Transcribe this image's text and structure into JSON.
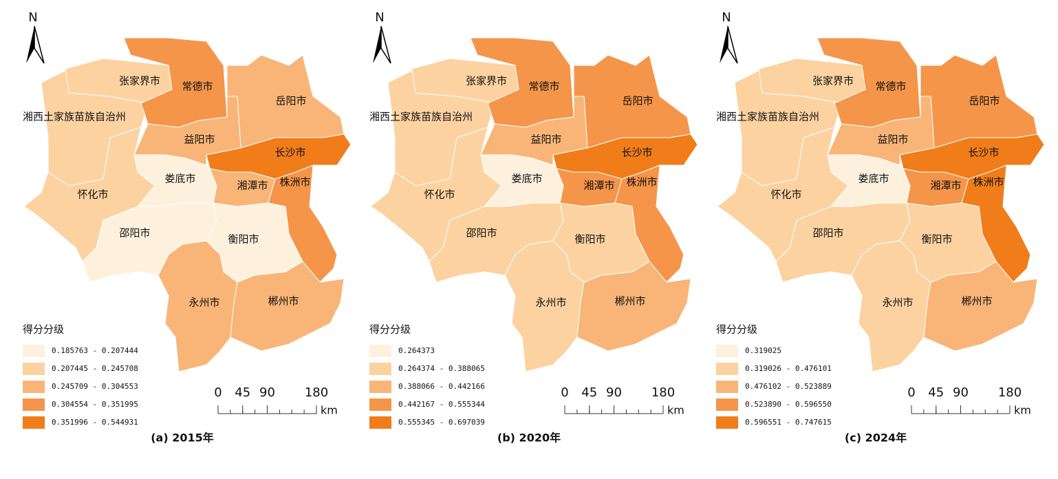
{
  "panels": [
    {
      "north": "N",
      "caption": "(a)  2015年",
      "legend": {
        "title": "得分分级",
        "items": [
          {
            "label": "0.185763 - 0.207444",
            "color": "#fdf1dd"
          },
          {
            "label": "0.207445 - 0.245708",
            "color": "#fcd2a0"
          },
          {
            "label": "0.245709 - 0.304553",
            "color": "#f9b577"
          },
          {
            "label": "0.304554 - 0.351995",
            "color": "#f5954a"
          },
          {
            "label": "0.351996 - 0.544931",
            "color": "#f07d1a"
          }
        ]
      },
      "scale": {
        "ticks": [
          0,
          45,
          90,
          180
        ],
        "unit": "km"
      },
      "regions": [
        {
          "name": "湘西土家族苗族自治州",
          "color": "#fcd2a0"
        },
        {
          "name": "张家界市",
          "color": "#fcd2a0"
        },
        {
          "name": "常德市",
          "color": "#f5954a"
        },
        {
          "name": "岳阳市",
          "color": "#f9b577"
        },
        {
          "name": "益阳市",
          "color": "#f9b577"
        },
        {
          "name": "长沙市",
          "color": "#f07d1a"
        },
        {
          "name": "娄底市",
          "color": "#fdf1dd"
        },
        {
          "name": "湘潭市",
          "color": "#f9b577"
        },
        {
          "name": "株洲市",
          "color": "#f5954a"
        },
        {
          "name": "怀化市",
          "color": "#fcd2a0"
        },
        {
          "name": "邵阳市",
          "color": "#fdf1dd"
        },
        {
          "name": "衡阳市",
          "color": "#fdf1dd"
        },
        {
          "name": "永州市",
          "color": "#f9b577"
        },
        {
          "name": "郴州市",
          "color": "#f9b577"
        }
      ]
    },
    {
      "north": "N",
      "caption": "(b)  2020年",
      "legend": {
        "title": "得分分级",
        "items": [
          {
            "label": "0.264373",
            "color": "#fdf1dd"
          },
          {
            "label": "0.264374 - 0.388065",
            "color": "#fcd2a0"
          },
          {
            "label": "0.388066 - 0.442166",
            "color": "#f9b577"
          },
          {
            "label": "0.442167 - 0.555344",
            "color": "#f5954a"
          },
          {
            "label": "0.555345 - 0.697039",
            "color": "#f07d1a"
          }
        ]
      },
      "scale": {
        "ticks": [
          0,
          45,
          90,
          180
        ],
        "unit": "km"
      },
      "regions": [
        {
          "name": "湘西土家族苗族自治州",
          "color": "#fcd2a0"
        },
        {
          "name": "张家界市",
          "color": "#fcd2a0"
        },
        {
          "name": "常德市",
          "color": "#f5954a"
        },
        {
          "name": "岳阳市",
          "color": "#f5954a"
        },
        {
          "name": "益阳市",
          "color": "#f9b577"
        },
        {
          "name": "长沙市",
          "color": "#f07d1a"
        },
        {
          "name": "娄底市",
          "color": "#fdf1dd"
        },
        {
          "name": "湘潭市",
          "color": "#f5954a"
        },
        {
          "name": "株洲市",
          "color": "#f5954a"
        },
        {
          "name": "怀化市",
          "color": "#fcd2a0"
        },
        {
          "name": "邵阳市",
          "color": "#fcd2a0"
        },
        {
          "name": "衡阳市",
          "color": "#fcd2a0"
        },
        {
          "name": "永州市",
          "color": "#fcd2a0"
        },
        {
          "name": "郴州市",
          "color": "#f9b577"
        }
      ]
    },
    {
      "north": "N",
      "caption": "(c)  2024年",
      "legend": {
        "title": "得分分级",
        "items": [
          {
            "label": "0.319025",
            "color": "#fdf1dd"
          },
          {
            "label": "0.319026 - 0.476101",
            "color": "#fcd2a0"
          },
          {
            "label": "0.476102 - 0.523889",
            "color": "#f9b577"
          },
          {
            "label": "0.523890 - 0.596550",
            "color": "#f5954a"
          },
          {
            "label": "0.596551 - 0.747615",
            "color": "#f07d1a"
          }
        ]
      },
      "scale": {
        "ticks": [
          0,
          45,
          90,
          180
        ],
        "unit": "km"
      },
      "regions": [
        {
          "name": "湘西土家族苗族自治州",
          "color": "#fcd2a0"
        },
        {
          "name": "张家界市",
          "color": "#fcd2a0"
        },
        {
          "name": "常德市",
          "color": "#f5954a"
        },
        {
          "name": "岳阳市",
          "color": "#f5954a"
        },
        {
          "name": "益阳市",
          "color": "#f9b577"
        },
        {
          "name": "长沙市",
          "color": "#f07d1a"
        },
        {
          "name": "娄底市",
          "color": "#fdf1dd"
        },
        {
          "name": "湘潭市",
          "color": "#f5954a"
        },
        {
          "name": "株洲市",
          "color": "#f07d1a"
        },
        {
          "name": "怀化市",
          "color": "#fcd2a0"
        },
        {
          "name": "邵阳市",
          "color": "#fcd2a0"
        },
        {
          "name": "衡阳市",
          "color": "#fcd2a0"
        },
        {
          "name": "永州市",
          "color": "#fcd2a0"
        },
        {
          "name": "郴州市",
          "color": "#f9b577"
        }
      ]
    }
  ]
}
